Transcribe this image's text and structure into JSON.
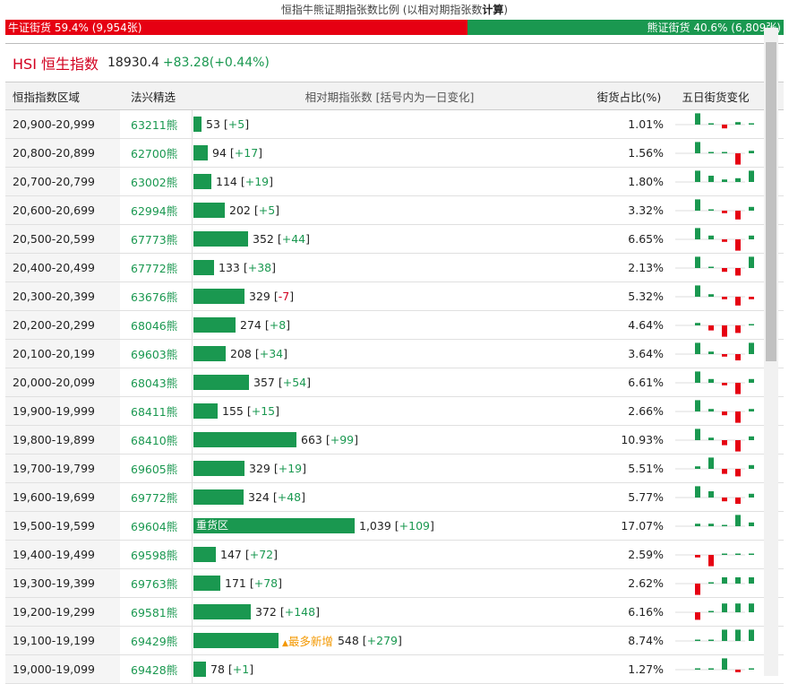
{
  "ratio": {
    "title_prefix": "恒指牛熊证期指张数比例 (以相对期指张数",
    "title_bold": "计算",
    "title_suffix": ")",
    "bull_label": "牛证街货 59.4% (9,954张)",
    "bear_label": "熊证街货 40.6% (6,809张)",
    "bull_pct": 59.4,
    "colors": {
      "bull": "#e60012",
      "bear": "#1a9850"
    }
  },
  "index": {
    "code": "HSI",
    "name": "恒生指数",
    "value": "18930.4",
    "change": "+83.28(+0.44%)"
  },
  "table": {
    "headers": [
      "恒指指数区域",
      "法兴精选",
      "相对期指张数 [括号内为一日变化]",
      "街货占比(%)",
      "五日街货变化"
    ],
    "max_contracts": 1039,
    "rows": [
      {
        "range": "20,900-20,999",
        "code": "63211熊",
        "contracts": 53,
        "contracts_text": "53",
        "change": "+5",
        "pct": "1.01%",
        "spark": [
          0.9,
          0,
          -0.3,
          0.2,
          0
        ]
      },
      {
        "range": "20,800-20,899",
        "code": "62700熊",
        "contracts": 94,
        "contracts_text": "94",
        "change": "+17",
        "pct": "1.56%",
        "spark": [
          0.9,
          0,
          0.1,
          -0.9,
          0.2
        ]
      },
      {
        "range": "20,700-20,799",
        "code": "63002熊",
        "contracts": 114,
        "contracts_text": "114",
        "change": "+19",
        "pct": "1.80%",
        "spark": [
          0.9,
          0.5,
          0.2,
          0.3,
          0.9
        ]
      },
      {
        "range": "20,600-20,699",
        "code": "62994熊",
        "contracts": 202,
        "contracts_text": "202",
        "change": "+5",
        "pct": "3.32%",
        "spark": [
          0.9,
          0.1,
          -0.2,
          -0.7,
          0.3
        ]
      },
      {
        "range": "20,500-20,599",
        "code": "67773熊",
        "contracts": 352,
        "contracts_text": "352",
        "change": "+44",
        "pct": "6.65%",
        "spark": [
          0.9,
          0.3,
          -0.2,
          -0.9,
          0.3
        ]
      },
      {
        "range": "20,400-20,499",
        "code": "67772熊",
        "contracts": 133,
        "contracts_text": "133",
        "change": "+38",
        "pct": "2.13%",
        "spark": [
          0.9,
          0.1,
          -0.3,
          -0.6,
          0.9
        ]
      },
      {
        "range": "20,300-20,399",
        "code": "63676熊",
        "contracts": 329,
        "contracts_text": "329",
        "change": "-7",
        "pct": "5.32%",
        "spark": [
          0.9,
          0.2,
          -0.2,
          -0.7,
          -0.2
        ]
      },
      {
        "range": "20,200-20,299",
        "code": "68046熊",
        "contracts": 274,
        "contracts_text": "274",
        "change": "+8",
        "pct": "4.64%",
        "spark": [
          0.2,
          -0.4,
          -0.9,
          -0.6,
          0.1
        ]
      },
      {
        "range": "20,100-20,199",
        "code": "69603熊",
        "contracts": 208,
        "contracts_text": "208",
        "change": "+34",
        "pct": "3.64%",
        "spark": [
          0.9,
          0.2,
          -0.2,
          -0.5,
          0.9
        ]
      },
      {
        "range": "20,000-20,099",
        "code": "68043熊",
        "contracts": 357,
        "contracts_text": "357",
        "change": "+54",
        "pct": "6.61%",
        "spark": [
          0.9,
          0.3,
          -0.2,
          -0.9,
          0.3
        ]
      },
      {
        "range": "19,900-19,999",
        "code": "68411熊",
        "contracts": 155,
        "contracts_text": "155",
        "change": "+15",
        "pct": "2.66%",
        "spark": [
          0.9,
          0.2,
          -0.3,
          -0.9,
          0.2
        ]
      },
      {
        "range": "19,800-19,899",
        "code": "68410熊",
        "contracts": 663,
        "contracts_text": "663",
        "change": "+99",
        "pct": "10.93%",
        "spark": [
          0.9,
          0.2,
          -0.4,
          -0.9,
          0.3
        ]
      },
      {
        "range": "19,700-19,799",
        "code": "69605熊",
        "contracts": 329,
        "contracts_text": "329",
        "change": "+19",
        "pct": "5.51%",
        "spark": [
          0.2,
          0.9,
          -0.4,
          -0.6,
          0.3
        ]
      },
      {
        "range": "19,600-19,699",
        "code": "69772熊",
        "contracts": 324,
        "contracts_text": "324",
        "change": "+48",
        "pct": "5.77%",
        "spark": [
          0.9,
          0.5,
          -0.3,
          -0.5,
          0.3
        ]
      },
      {
        "range": "19,500-19,599",
        "code": "69604熊",
        "contracts": 1039,
        "contracts_text": "1,039",
        "change": "+109",
        "pct": "17.07%",
        "spark": [
          0.2,
          0.2,
          0.1,
          0.9,
          0.3
        ],
        "bar_label": "重货区"
      },
      {
        "range": "19,400-19,499",
        "code": "69598熊",
        "contracts": 147,
        "contracts_text": "147",
        "change": "+72",
        "pct": "2.59%",
        "spark": [
          -0.2,
          -0.9,
          0.1,
          0.1,
          0.1
        ]
      },
      {
        "range": "19,300-19,399",
        "code": "69763熊",
        "contracts": 171,
        "contracts_text": "171",
        "change": "+78",
        "pct": "2.62%",
        "spark": [
          -0.9,
          0.1,
          0.5,
          0.5,
          0.5
        ]
      },
      {
        "range": "19,200-19,299",
        "code": "69581熊",
        "contracts": 372,
        "contracts_text": "372",
        "change": "+148",
        "pct": "6.16%",
        "spark": [
          -0.6,
          0.1,
          0.7,
          0.7,
          0.7
        ]
      },
      {
        "range": "19,100-19,199",
        "code": "69429熊",
        "contracts": 548,
        "contracts_text": "548",
        "change": "+279",
        "pct": "8.74%",
        "spark": [
          0.1,
          0.1,
          0.9,
          0.9,
          0.9
        ],
        "tag": "最多新增"
      },
      {
        "range": "19,000-19,099",
        "code": "69428熊",
        "contracts": 78,
        "contracts_text": "78",
        "change": "+1",
        "pct": "1.27%",
        "spark": [
          0.1,
          0.1,
          0.9,
          -0.2,
          0.1
        ]
      }
    ]
  }
}
